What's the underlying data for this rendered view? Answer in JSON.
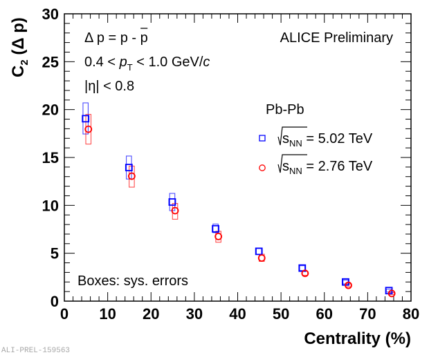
{
  "chart_data": {
    "type": "scatter",
    "title": "",
    "xlabel": "Centrality (%)",
    "ylabel": "C2 (Δ p)",
    "ylabel_parts": {
      "main": "C",
      "sub": "2",
      "rest": " (Δ p)"
    },
    "xlim": [
      0,
      80
    ],
    "ylim": [
      0,
      30
    ],
    "x_ticks": [
      "0",
      "10",
      "20",
      "30",
      "40",
      "50",
      "60",
      "70",
      "80"
    ],
    "y_ticks": [
      "0",
      "5",
      "10",
      "15",
      "20",
      "25",
      "30"
    ],
    "x_tick_values": [
      0,
      10,
      20,
      30,
      40,
      50,
      60,
      70,
      80
    ],
    "y_tick_values": [
      0,
      5,
      10,
      15,
      20,
      25,
      30
    ],
    "grid": false,
    "legend_placement": "top-right",
    "legend_header": "Pb-Pb",
    "series": [
      {
        "name": "√sNN = 5.02 TeV",
        "legend_label_parts": {
          "pre": "s",
          "sub": "NN",
          "post": " = 5.02 TeV"
        },
        "marker": "open-square",
        "color": "#0000ff",
        "x": [
          5,
          15,
          25,
          35,
          45,
          55,
          65,
          75
        ],
        "y": [
          19.05,
          13.95,
          10.35,
          7.55,
          5.2,
          3.45,
          2.0,
          1.1
        ],
        "sys_low": [
          17.45,
          12.75,
          9.45,
          7.15,
          4.9,
          3.2,
          1.8,
          0.95
        ],
        "sys_high": [
          20.7,
          15.15,
          11.25,
          8.05,
          5.5,
          3.7,
          2.2,
          1.25
        ]
      },
      {
        "name": "√sNN = 2.76 TeV",
        "legend_label_parts": {
          "pre": "s",
          "sub": "NN",
          "post": " = 2.76 TeV"
        },
        "marker": "open-circle",
        "color": "#ff0000",
        "x": [
          5,
          15,
          25,
          35,
          45,
          55,
          65,
          75
        ],
        "y": [
          17.95,
          13.05,
          9.45,
          6.75,
          4.5,
          2.9,
          1.65,
          0.8
        ],
        "sys_low": [
          16.4,
          11.9,
          8.55,
          6.15,
          4.15,
          2.7,
          1.5,
          0.7
        ],
        "sys_high": [
          19.5,
          14.1,
          10.2,
          7.3,
          4.9,
          3.1,
          1.8,
          0.9
        ]
      }
    ],
    "annotations": {
      "line1": "Δ p = p - p",
      "line1_parts": {
        "pre": "Δ p = p - ",
        "bar": "p"
      },
      "line2_parts": {
        "pre": "0.4 < ",
        "p": "p",
        "sub": "T",
        "mid": " < 1.0 GeV/",
        "c": "c"
      },
      "line3": "|η| < 0.8",
      "experiment": "ALICE Preliminary",
      "boxes_note": "Boxes: sys. errors",
      "figure_id": "ALI-PREL-159563"
    }
  }
}
